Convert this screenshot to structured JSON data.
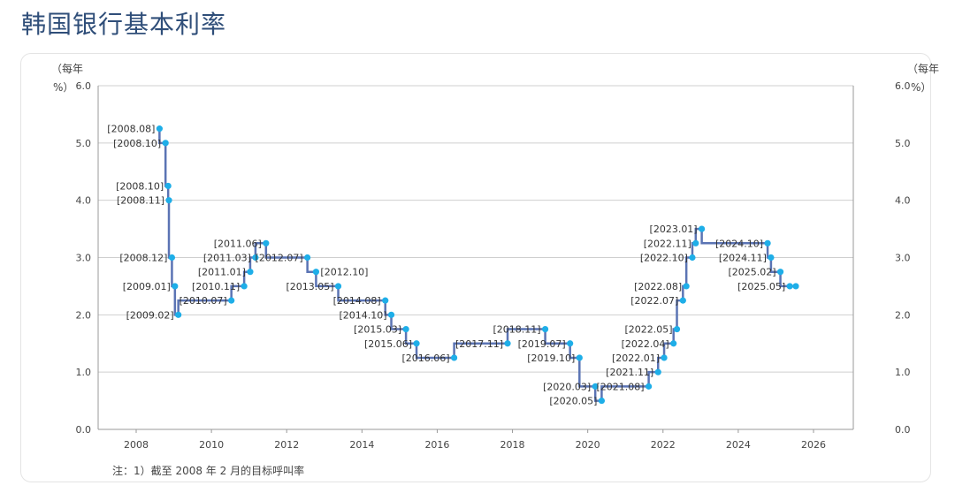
{
  "page": {
    "title": "韩国银行基本利率"
  },
  "chart_data": {
    "type": "line",
    "step": true,
    "title": "韩国银行基本利率",
    "y_unit_left": [
      "（每年",
      "%）"
    ],
    "y_unit_right": [
      "（每年",
      "%）"
    ],
    "ylim": [
      0,
      6
    ],
    "xlim": [
      2007,
      2027
    ],
    "y_ticks": [
      "0.0",
      "1.0",
      "2.0",
      "3.0",
      "4.0",
      "5.0",
      "6.0"
    ],
    "x_ticks": [
      "2008",
      "2010",
      "2012",
      "2014",
      "2016",
      "2018",
      "2020",
      "2022",
      "2024",
      "2026"
    ],
    "grid": true,
    "line_color": "#5b74b4",
    "marker_color": "#1eaee8",
    "series": [
      {
        "points": [
          {
            "label": "[2008.08]",
            "x": 2008.62,
            "y": 5.25,
            "side": "left"
          },
          {
            "label": "[2008.10]",
            "x": 2008.78,
            "y": 5.0,
            "side": "left"
          },
          {
            "label": "[2008.10]",
            "x": 2008.85,
            "y": 4.25,
            "side": "left"
          },
          {
            "label": "[2008.11]",
            "x": 2008.87,
            "y": 4.0,
            "side": "left"
          },
          {
            "label": "[2008.12]",
            "x": 2008.95,
            "y": 3.0,
            "side": "left"
          },
          {
            "label": "[2009.01]",
            "x": 2009.03,
            "y": 2.5,
            "side": "left"
          },
          {
            "label": "[2009.02]",
            "x": 2009.12,
            "y": 2.0,
            "side": "left"
          },
          {
            "label": "[2010.07]",
            "x": 2010.53,
            "y": 2.25,
            "side": "left"
          },
          {
            "label": "[2010.11]",
            "x": 2010.87,
            "y": 2.5,
            "side": "left"
          },
          {
            "label": "[2011.01]",
            "x": 2011.03,
            "y": 2.75,
            "side": "left"
          },
          {
            "label": "[2011.03]",
            "x": 2011.17,
            "y": 3.0,
            "side": "left"
          },
          {
            "label": "[2011.06]",
            "x": 2011.45,
            "y": 3.25,
            "side": "left"
          },
          {
            "label": "[2012.07]",
            "x": 2012.55,
            "y": 3.0,
            "side": "left"
          },
          {
            "label": "[2012.10]",
            "x": 2012.78,
            "y": 2.75,
            "side": "right"
          },
          {
            "label": "[2013.05]",
            "x": 2013.37,
            "y": 2.5,
            "side": "left"
          },
          {
            "label": "[2014.08]",
            "x": 2014.62,
            "y": 2.25,
            "side": "left"
          },
          {
            "label": "[2014.10]",
            "x": 2014.78,
            "y": 2.0,
            "side": "left"
          },
          {
            "label": "[2015.03]",
            "x": 2015.17,
            "y": 1.75,
            "side": "left"
          },
          {
            "label": "[2015.06]",
            "x": 2015.45,
            "y": 1.5,
            "side": "left"
          },
          {
            "label": "[2016.06]",
            "x": 2016.45,
            "y": 1.25,
            "side": "left"
          },
          {
            "label": "[2017.11]",
            "x": 2017.87,
            "y": 1.5,
            "side": "left"
          },
          {
            "label": "[2018.11]",
            "x": 2018.87,
            "y": 1.75,
            "side": "left"
          },
          {
            "label": "[2019.07]",
            "x": 2019.53,
            "y": 1.5,
            "side": "left"
          },
          {
            "label": "[2019.10]",
            "x": 2019.78,
            "y": 1.25,
            "side": "left"
          },
          {
            "label": "[2020.03]",
            "x": 2020.2,
            "y": 0.75,
            "side": "left"
          },
          {
            "label": "[2020.05]",
            "x": 2020.37,
            "y": 0.5,
            "side": "left"
          },
          {
            "label": "[2021.08]",
            "x": 2021.62,
            "y": 0.75,
            "side": "left"
          },
          {
            "label": "[2021.11]",
            "x": 2021.87,
            "y": 1.0,
            "side": "left"
          },
          {
            "label": "[2022.01]",
            "x": 2022.03,
            "y": 1.25,
            "side": "left"
          },
          {
            "label": "[2022.04]",
            "x": 2022.28,
            "y": 1.5,
            "side": "left"
          },
          {
            "label": "[2022.05]",
            "x": 2022.37,
            "y": 1.75,
            "side": "left"
          },
          {
            "label": "[2022.07]",
            "x": 2022.53,
            "y": 2.25,
            "side": "left"
          },
          {
            "label": "[2022.08]",
            "x": 2022.62,
            "y": 2.5,
            "side": "left"
          },
          {
            "label": "[2022.10]",
            "x": 2022.78,
            "y": 3.0,
            "side": "left"
          },
          {
            "label": "[2022.11]",
            "x": 2022.87,
            "y": 3.25,
            "side": "left"
          },
          {
            "label": "[2023.01]",
            "x": 2023.03,
            "y": 3.5,
            "side": "left"
          },
          {
            "label": "[2024.10]",
            "x": 2024.78,
            "y": 3.25,
            "side": "left"
          },
          {
            "label": "[2024.11]",
            "x": 2024.87,
            "y": 3.0,
            "side": "left"
          },
          {
            "label": "[2025.02]",
            "x": 2025.12,
            "y": 2.75,
            "side": "left"
          },
          {
            "label": "[2025.05]",
            "x": 2025.37,
            "y": 2.5,
            "side": "left"
          },
          {
            "label": "",
            "x": 2025.53,
            "y": 2.5,
            "side": "none"
          }
        ]
      }
    ],
    "note": "注：1）截至 2008 年 2 月的目标呼叫率"
  }
}
